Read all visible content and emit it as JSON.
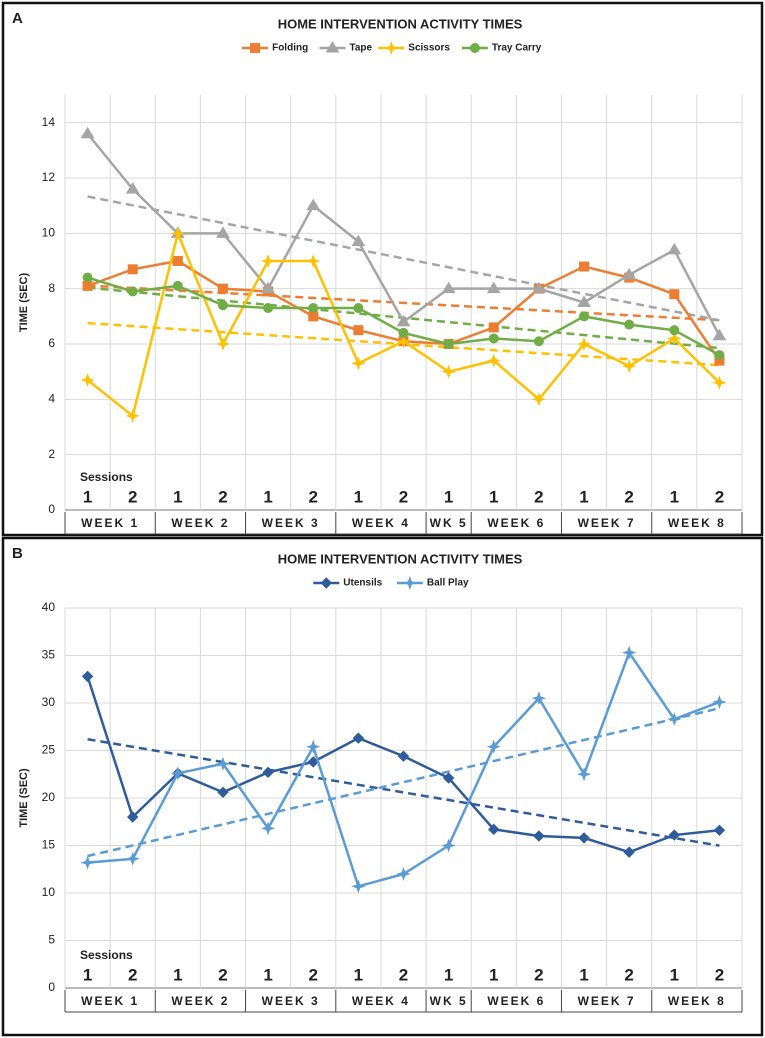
{
  "chart_data": [
    {
      "type": "line",
      "panel_label": "A",
      "title": "HOME INTERVENTION ACTIVITY TIMES",
      "y_label": "TIME (SEC)",
      "annotation": "Sessions",
      "categories": [
        "1",
        "2",
        "1",
        "2",
        "1",
        "2",
        "1",
        "2",
        "1",
        "1",
        "2",
        "1",
        "2",
        "1",
        "2"
      ],
      "weeks": [
        "WEEK 1",
        "WEEK 1",
        "WEEK 2",
        "WEEK 2",
        "WEEK 3",
        "WEEK 3",
        "WEEK 4",
        "WEEK 4",
        "WK 5",
        "WEEK 6",
        "WEEK 6",
        "WEEK 7",
        "WEEK 7",
        "WEEK 8",
        "WEEK 8"
      ],
      "ylim": [
        0,
        15
      ],
      "yticks": [
        0,
        2,
        4,
        6,
        8,
        10,
        12,
        14
      ],
      "grid": true,
      "trendline": true,
      "series": [
        {
          "name": "Folding",
          "color": "#ed7d31",
          "marker": "square",
          "values": [
            8.1,
            8.7,
            9.0,
            8.0,
            7.9,
            7.0,
            6.5,
            6.1,
            6.0,
            6.6,
            8.0,
            8.8,
            8.4,
            7.8,
            5.4
          ]
        },
        {
          "name": "Tape",
          "color": "#a5a5a5",
          "marker": "triangle",
          "values": [
            13.6,
            11.6,
            10.0,
            10.0,
            8.0,
            11.0,
            9.7,
            6.8,
            8.0,
            8.0,
            8.0,
            7.5,
            8.5,
            9.4,
            6.3
          ]
        },
        {
          "name": "Scissors",
          "color": "#ffc000",
          "marker": "star",
          "values": [
            4.7,
            3.4,
            10.0,
            6.0,
            9.0,
            9.0,
            5.3,
            6.1,
            5.0,
            5.4,
            4.0,
            6.0,
            5.2,
            6.2,
            4.6
          ]
        },
        {
          "name": "Tray Carry",
          "color": "#70ad47",
          "marker": "circle",
          "values": [
            8.4,
            7.9,
            8.1,
            7.4,
            7.3,
            7.3,
            7.3,
            6.4,
            6.0,
            6.2,
            6.1,
            7.0,
            6.7,
            6.5,
            5.6
          ]
        }
      ]
    },
    {
      "type": "line",
      "panel_label": "B",
      "title": "HOME INTERVENTION ACTIVITY TIMES",
      "y_label": "TIME (SEC)",
      "annotation": "Sessions",
      "categories": [
        "1",
        "2",
        "1",
        "2",
        "1",
        "2",
        "1",
        "2",
        "1",
        "1",
        "2",
        "1",
        "2",
        "1",
        "2"
      ],
      "weeks": [
        "WEEK 1",
        "WEEK 1",
        "WEEK 2",
        "WEEK 2",
        "WEEK 3",
        "WEEK 3",
        "WEEK 4",
        "WEEK 4",
        "WK 5",
        "WEEK 6",
        "WEEK 6",
        "WEEK 7",
        "WEEK 7",
        "WEEK 8",
        "WEEK 8"
      ],
      "ylim": [
        0,
        40
      ],
      "yticks": [
        0,
        5,
        10,
        15,
        20,
        25,
        30,
        35,
        40
      ],
      "grid": true,
      "trendline": true,
      "series": [
        {
          "name": "Utensils",
          "color": "#2f5c9a",
          "marker": "diamond",
          "values": [
            32.8,
            18.0,
            22.6,
            20.6,
            22.7,
            23.8,
            26.3,
            24.4,
            22.1,
            16.7,
            16.0,
            15.8,
            14.3,
            16.1,
            16.6
          ]
        },
        {
          "name": "Ball Play",
          "color": "#5b9bd5",
          "marker": "star",
          "values": [
            13.2,
            13.6,
            22.6,
            23.6,
            16.8,
            25.4,
            10.7,
            12.0,
            15.0,
            25.4,
            30.5,
            22.5,
            35.3,
            28.3,
            30.1
          ]
        }
      ]
    }
  ]
}
